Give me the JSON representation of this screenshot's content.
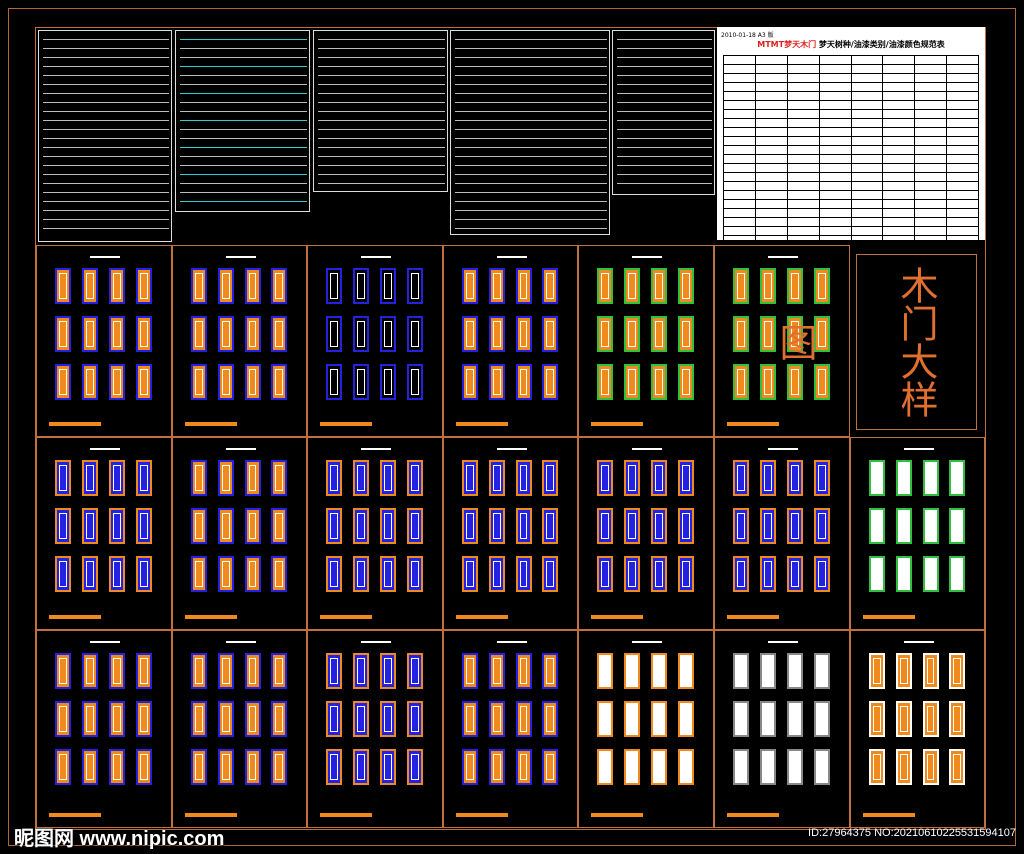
{
  "title_block": {
    "date_label": "2010-01-18  A3 版",
    "brand": "MTMT梦天木门",
    "title": "梦天树种/油漆类别/油漆颜色规范表"
  },
  "drawing_title": "木门大样图",
  "watermark": {
    "site": "昵图网 www.nipic.com",
    "id": "ID:27964375 NO:20210610225531594107"
  },
  "colors": {
    "frame": "#c07040",
    "door_orange": "#f08a1c",
    "door_blue": "#2222e0",
    "door_white": "#ffffff",
    "door_green": "#30c040",
    "title_red": "#e02020"
  },
  "sheets": [
    {
      "fill": "#f08a1c",
      "edge": "#2222e0"
    },
    {
      "fill": "#f08a1c",
      "edge": "#2222e0"
    },
    {
      "fill": "#000000",
      "edge": "#2222e0"
    },
    {
      "fill": "#f08a1c",
      "edge": "#2222e0"
    },
    {
      "fill": "#f08a1c",
      "edge": "#30c040"
    },
    {
      "fill": "#f08a1c",
      "edge": "#30c040"
    },
    {
      "fill": "#2222e0",
      "edge": "#f08a1c"
    },
    {
      "fill": "#f08a1c",
      "edge": "#2222e0"
    },
    {
      "fill": "#2222e0",
      "edge": "#f08a1c"
    },
    {
      "fill": "#2222e0",
      "edge": "#f08a1c"
    },
    {
      "fill": "#2222e0",
      "edge": "#f08a1c"
    },
    {
      "fill": "#2222e0",
      "edge": "#f08a1c"
    },
    {
      "fill": "#ffffff",
      "edge": "#30c040"
    },
    {
      "fill": "#f08a1c",
      "edge": "#2222e0"
    },
    {
      "fill": "#f08a1c",
      "edge": "#2222e0"
    },
    {
      "fill": "#2222e0",
      "edge": "#f08a1c"
    },
    {
      "fill": "#f08a1c",
      "edge": "#2222e0"
    },
    {
      "fill": "#ffffff",
      "edge": "#f08a1c"
    },
    {
      "fill": "#ffffff",
      "edge": "#888888"
    },
    {
      "fill": "#f08a1c",
      "edge": "#ffffff"
    }
  ]
}
